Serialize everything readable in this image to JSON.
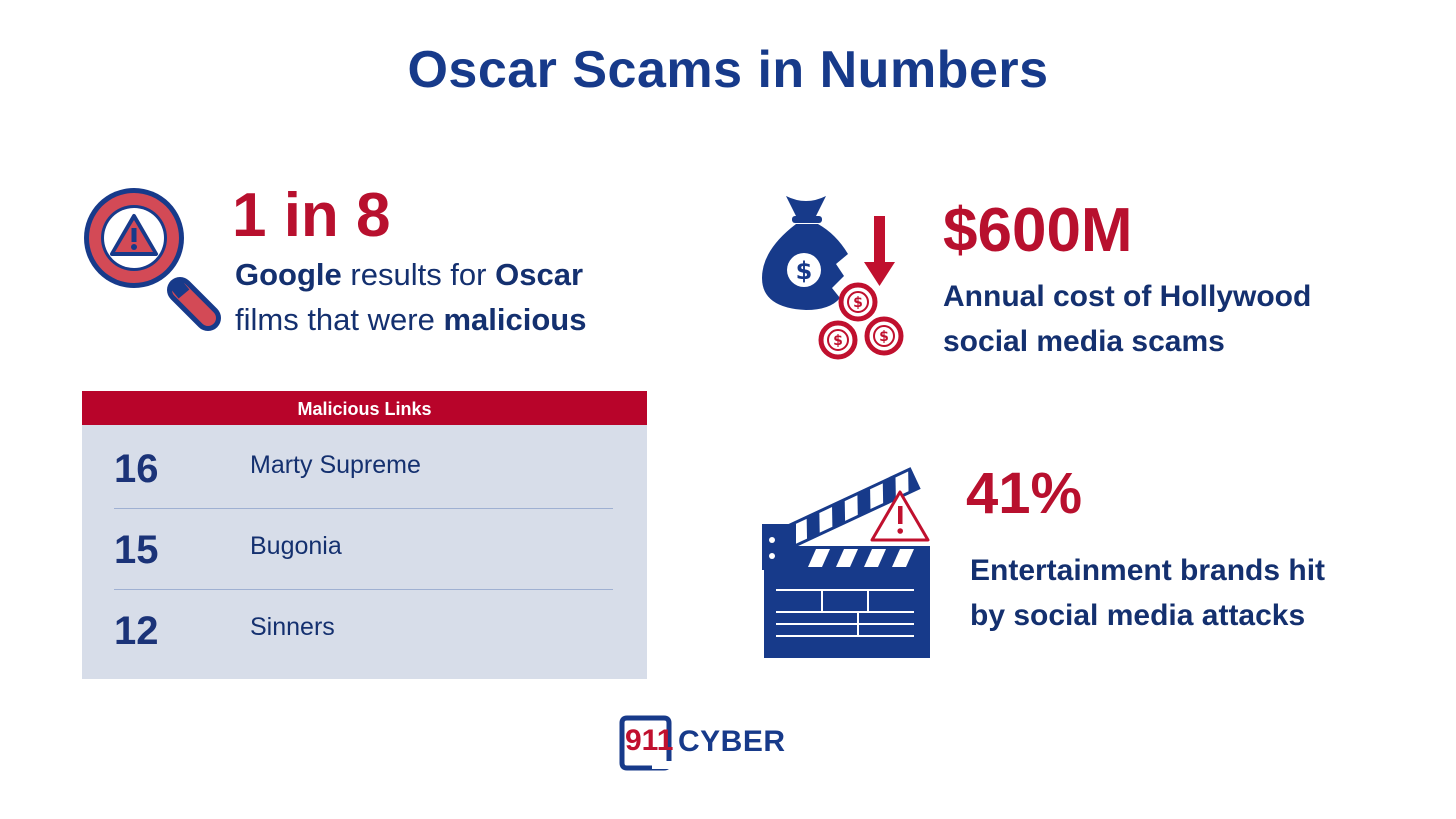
{
  "title": "Oscar Scams in Numbers",
  "stat1": {
    "value": "1 in 8",
    "desc_line1": [
      "Google",
      " results for ",
      "Oscar"
    ],
    "desc_line2": [
      "films that were ",
      "malicious"
    ]
  },
  "stat2": {
    "value": "$600M",
    "desc_line1": "Annual cost of Hollywood",
    "desc_line2": "social media scams"
  },
  "stat3": {
    "value": "41%",
    "desc_line1": "Entertainment brands hit",
    "desc_line2": "by social media attacks"
  },
  "table": {
    "header": "Malicious Links",
    "rows": [
      {
        "count": "16",
        "film": "Marty Supreme"
      },
      {
        "count": "15",
        "film": "Bugonia"
      },
      {
        "count": "12",
        "film": "Sinners"
      }
    ]
  },
  "logo": {
    "number": "911",
    "word": "CYBER"
  },
  "icons": {
    "stat1": "magnifier-warning-icon",
    "stat2": "money-bag-loss-icon",
    "stat3": "clapperboard-warning-icon"
  },
  "colors": {
    "navy": "#173a8a",
    "red": "#b8102e",
    "table_bg": "#d7dde9"
  }
}
